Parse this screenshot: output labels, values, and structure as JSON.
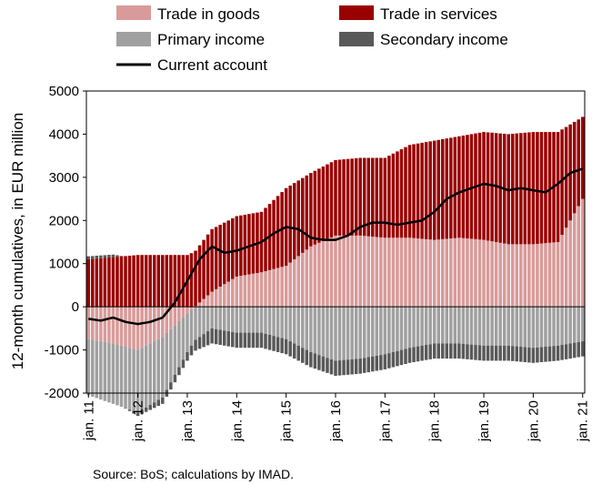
{
  "chart_data": {
    "type": "bar",
    "stacked": true,
    "ylabel": "12-month cumulatives, in EUR million",
    "ylim": [
      -2000,
      5000
    ],
    "yticks": [
      -2000,
      -1000,
      0,
      1000,
      2000,
      3000,
      4000,
      5000
    ],
    "x_tick_labels": [
      "jan. 11",
      "jan. 12",
      "jan. 13",
      "jan. 14",
      "jan. 15",
      "jan. 16",
      "jan. 17",
      "jan. 18",
      "jan. 19",
      "jan. 20",
      "jan. 21"
    ],
    "x_start": "2011-01",
    "x_end": "2021-01",
    "source": "Source: BoS; calculations by IMAD.",
    "grid": false,
    "legend_position": "top",
    "colors": {
      "goods": "#d99a9a",
      "services": "#990000",
      "primary": "#a0a0a0",
      "secondary": "#595959",
      "current": "#000000"
    },
    "legend": {
      "goods": "Trade in goods",
      "services": "Trade in services",
      "primary": "Primary income",
      "secondary": "Secondary income",
      "current": "Current account"
    },
    "anchors": {
      "goods": [
        [
          0,
          -750
        ],
        [
          6,
          -850
        ],
        [
          12,
          -1000
        ],
        [
          18,
          -700
        ],
        [
          24,
          -150
        ],
        [
          30,
          350
        ],
        [
          36,
          700
        ],
        [
          42,
          800
        ],
        [
          48,
          950
        ],
        [
          54,
          1400
        ],
        [
          60,
          1650
        ],
        [
          66,
          1650
        ],
        [
          72,
          1600
        ],
        [
          78,
          1600
        ],
        [
          84,
          1550
        ],
        [
          90,
          1600
        ],
        [
          96,
          1550
        ],
        [
          102,
          1450
        ],
        [
          108,
          1450
        ],
        [
          114,
          1500
        ],
        [
          120,
          2500
        ]
      ],
      "services": [
        [
          0,
          1100
        ],
        [
          6,
          1150
        ],
        [
          12,
          1200
        ],
        [
          18,
          1200
        ],
        [
          24,
          1200
        ],
        [
          30,
          1450
        ],
        [
          36,
          1400
        ],
        [
          42,
          1400
        ],
        [
          48,
          1800
        ],
        [
          54,
          1700
        ],
        [
          60,
          1750
        ],
        [
          66,
          1800
        ],
        [
          72,
          1850
        ],
        [
          78,
          2150
        ],
        [
          84,
          2300
        ],
        [
          90,
          2350
        ],
        [
          96,
          2500
        ],
        [
          102,
          2550
        ],
        [
          108,
          2600
        ],
        [
          114,
          2550
        ],
        [
          120,
          1900
        ]
      ],
      "primary": [
        [
          0,
          -1300
        ],
        [
          6,
          -1400
        ],
        [
          12,
          -1450
        ],
        [
          18,
          -1400
        ],
        [
          24,
          -900
        ],
        [
          30,
          -500
        ],
        [
          36,
          -600
        ],
        [
          42,
          -600
        ],
        [
          48,
          -750
        ],
        [
          54,
          -1050
        ],
        [
          60,
          -1250
        ],
        [
          66,
          -1200
        ],
        [
          72,
          -1100
        ],
        [
          78,
          -950
        ],
        [
          84,
          -850
        ],
        [
          90,
          -850
        ],
        [
          96,
          -900
        ],
        [
          102,
          -900
        ],
        [
          108,
          -950
        ],
        [
          114,
          -900
        ],
        [
          120,
          -800
        ]
      ],
      "secondary": [
        [
          0,
          70
        ],
        [
          6,
          60
        ],
        [
          12,
          -80
        ],
        [
          18,
          -150
        ],
        [
          24,
          -200
        ],
        [
          30,
          -350
        ],
        [
          36,
          -350
        ],
        [
          42,
          -350
        ],
        [
          48,
          -350
        ],
        [
          54,
          -350
        ],
        [
          60,
          -350
        ],
        [
          66,
          -350
        ],
        [
          72,
          -350
        ],
        [
          78,
          -350
        ],
        [
          84,
          -350
        ],
        [
          90,
          -350
        ],
        [
          96,
          -350
        ],
        [
          102,
          -350
        ],
        [
          108,
          -350
        ],
        [
          114,
          -350
        ],
        [
          120,
          -350
        ]
      ],
      "current": [
        [
          0,
          -280
        ],
        [
          3,
          -320
        ],
        [
          6,
          -250
        ],
        [
          9,
          -350
        ],
        [
          12,
          -400
        ],
        [
          15,
          -350
        ],
        [
          18,
          -250
        ],
        [
          21,
          100
        ],
        [
          24,
          600
        ],
        [
          27,
          1100
        ],
        [
          30,
          1400
        ],
        [
          33,
          1250
        ],
        [
          36,
          1300
        ],
        [
          39,
          1400
        ],
        [
          42,
          1500
        ],
        [
          45,
          1700
        ],
        [
          48,
          1850
        ],
        [
          51,
          1800
        ],
        [
          54,
          1600
        ],
        [
          57,
          1550
        ],
        [
          60,
          1550
        ],
        [
          63,
          1650
        ],
        [
          66,
          1850
        ],
        [
          69,
          1950
        ],
        [
          72,
          1950
        ],
        [
          75,
          1900
        ],
        [
          78,
          1950
        ],
        [
          81,
          2000
        ],
        [
          84,
          2200
        ],
        [
          87,
          2500
        ],
        [
          90,
          2650
        ],
        [
          93,
          2750
        ],
        [
          96,
          2850
        ],
        [
          99,
          2800
        ],
        [
          102,
          2700
        ],
        [
          105,
          2750
        ],
        [
          108,
          2700
        ],
        [
          111,
          2650
        ],
        [
          114,
          2850
        ],
        [
          117,
          3100
        ],
        [
          120,
          3200
        ]
      ]
    }
  }
}
